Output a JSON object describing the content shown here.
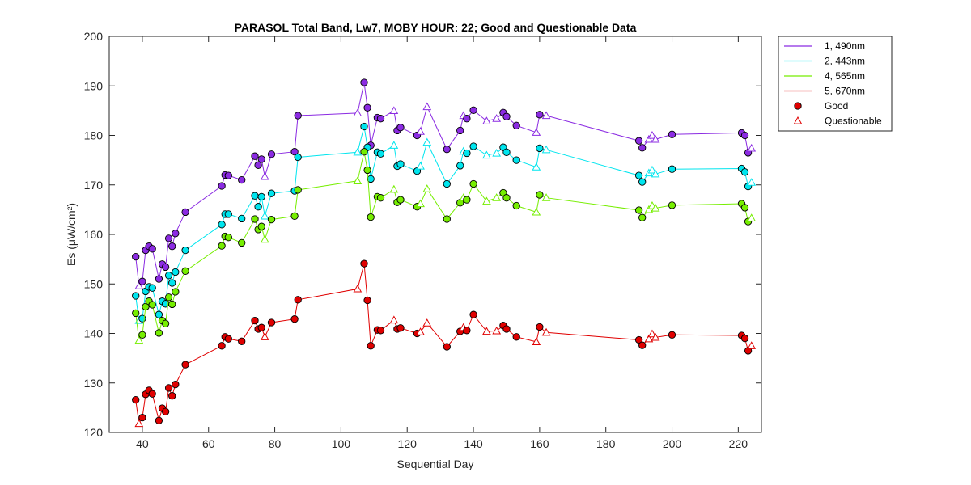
{
  "chart_data": {
    "type": "line",
    "title": "PARASOL Total Band,  Lw7, MOBY HOUR: 22;  Good and Questionable Data",
    "xlabel": "Sequential Day",
    "ylabel": "Es (μW/cm²)",
    "xlim": [
      30,
      227
    ],
    "ylim": [
      120,
      200
    ],
    "xticks": [
      40,
      60,
      80,
      100,
      120,
      140,
      160,
      180,
      200,
      220
    ],
    "yticks": [
      120,
      130,
      140,
      150,
      160,
      170,
      180,
      190,
      200
    ],
    "grid": false,
    "legend_position": "outside-top-right",
    "legend": [
      {
        "label": "1, 490nm",
        "kind": "line",
        "color": "#8b2be2"
      },
      {
        "label": "2, 443nm",
        "kind": "line",
        "color": "#00e5ee"
      },
      {
        "label": "4, 565nm",
        "kind": "line",
        "color": "#76ee00"
      },
      {
        "label": "5, 670nm",
        "kind": "line",
        "color": "#e00000"
      },
      {
        "label": "Good",
        "kind": "circle",
        "color": "#e00000"
      },
      {
        "label": "Questionable",
        "kind": "triangle",
        "color": "#e00000"
      }
    ],
    "x": [
      38,
      39,
      40,
      41,
      42,
      43,
      45,
      46,
      47,
      48,
      49,
      50,
      53,
      64,
      65,
      66,
      70,
      74,
      75,
      76,
      77,
      79,
      86,
      87,
      105,
      107,
      108,
      109,
      111,
      112,
      116,
      117,
      118,
      123,
      124,
      126,
      132,
      136,
      137,
      138,
      140,
      144,
      147,
      149,
      150,
      153,
      159,
      160,
      162,
      190,
      191,
      193,
      194,
      195,
      200,
      221,
      222,
      223,
      224
    ],
    "quality": [
      "G",
      "Q",
      "G",
      "G",
      "G",
      "G",
      "G",
      "G",
      "G",
      "G",
      "G",
      "G",
      "G",
      "G",
      "G",
      "G",
      "G",
      "G",
      "G",
      "G",
      "Q",
      "G",
      "G",
      "G",
      "Q",
      "G",
      "G",
      "G",
      "G",
      "G",
      "Q",
      "G",
      "G",
      "G",
      "Q",
      "Q",
      "G",
      "G",
      "Q",
      "G",
      "G",
      "Q",
      "Q",
      "G",
      "G",
      "G",
      "Q",
      "G",
      "Q",
      "G",
      "G",
      "Q",
      "Q",
      "Q",
      "G",
      "G",
      "G",
      "G",
      "Q"
    ],
    "series": [
      {
        "name": "1, 490nm",
        "color": "#8b2be2",
        "values": [
          155.5,
          149.6,
          150.5,
          156.8,
          157.6,
          157.1,
          151.0,
          154.0,
          153.4,
          159.2,
          157.6,
          160.2,
          164.5,
          169.8,
          172.0,
          171.9,
          171.0,
          175.8,
          174.0,
          175.2,
          171.7,
          176.2,
          176.7,
          184.0,
          184.5,
          190.7,
          185.6,
          178.0,
          183.6,
          183.4,
          185.0,
          181.0,
          181.6,
          180.0,
          180.8,
          185.8,
          177.2,
          181.0,
          184.0,
          183.4,
          185.1,
          182.9,
          183.4,
          184.6,
          183.8,
          182.0,
          180.6,
          184.2,
          184.0,
          178.9,
          177.5,
          179.2,
          180.0,
          179.2,
          180.2,
          180.5,
          180.0,
          176.5,
          177.4
        ]
      },
      {
        "name": "2, 443nm",
        "color": "#00e5ee",
        "values": [
          147.6,
          142.6,
          143.0,
          148.5,
          149.4,
          149.2,
          143.8,
          146.5,
          146.0,
          151.7,
          150.2,
          152.4,
          156.8,
          162.0,
          164.1,
          164.1,
          163.2,
          167.8,
          165.6,
          167.6,
          163.7,
          168.3,
          168.8,
          175.6,
          176.6,
          181.8,
          177.6,
          171.2,
          176.6,
          176.3,
          178.0,
          173.8,
          174.2,
          172.8,
          173.8,
          178.6,
          170.2,
          173.9,
          176.8,
          176.4,
          177.8,
          176.0,
          176.4,
          177.6,
          176.6,
          175.0,
          173.6,
          177.4,
          177.1,
          171.9,
          170.6,
          172.4,
          173.0,
          172.2,
          173.2,
          173.3,
          172.6,
          169.7,
          170.5
        ]
      },
      {
        "name": "4, 565nm",
        "color": "#76ee00",
        "values": [
          144.1,
          138.6,
          139.7,
          145.4,
          146.5,
          145.8,
          140.1,
          142.6,
          142.0,
          147.3,
          145.9,
          148.4,
          152.6,
          157.7,
          159.6,
          159.4,
          158.3,
          163.1,
          161.0,
          161.6,
          159.0,
          163.0,
          163.7,
          169.0,
          170.8,
          176.7,
          173.0,
          163.5,
          167.6,
          167.4,
          169.1,
          166.5,
          167.0,
          165.6,
          166.2,
          169.2,
          163.1,
          166.4,
          167.4,
          167.0,
          170.2,
          166.7,
          167.4,
          168.4,
          167.4,
          165.8,
          164.5,
          168.0,
          167.4,
          164.9,
          163.4,
          165.0,
          165.8,
          165.3,
          165.9,
          166.2,
          165.4,
          162.6,
          163.3
        ]
      },
      {
        "name": "5, 670nm",
        "color": "#e00000",
        "values": [
          126.6,
          121.8,
          123.0,
          127.7,
          128.5,
          127.8,
          122.4,
          124.9,
          124.2,
          129.0,
          127.4,
          129.7,
          133.7,
          137.5,
          139.3,
          138.9,
          138.4,
          142.6,
          140.9,
          141.2,
          139.3,
          142.2,
          142.9,
          146.8,
          149.0,
          154.1,
          146.7,
          137.5,
          140.7,
          140.6,
          142.7,
          140.9,
          141.1,
          140.0,
          140.3,
          142.1,
          137.3,
          140.4,
          141.2,
          140.6,
          143.8,
          140.4,
          140.5,
          141.6,
          140.9,
          139.3,
          138.3,
          141.3,
          140.2,
          138.7,
          137.6,
          138.9,
          139.9,
          139.2,
          139.7,
          139.6,
          139.0,
          136.5,
          137.5
        ]
      }
    ]
  }
}
